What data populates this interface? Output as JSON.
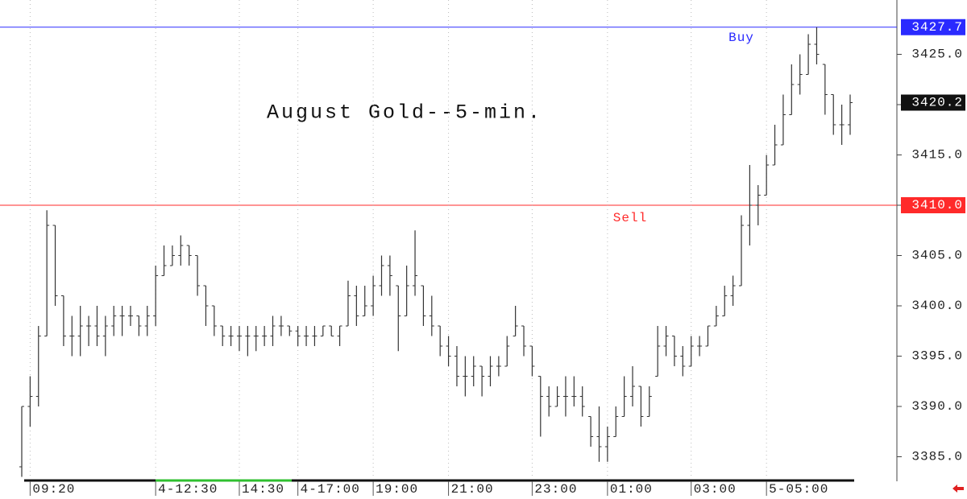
{
  "chart_data": {
    "type": "ohlc",
    "title": "August Gold--5-min.",
    "categories": [
      null,
      "09:20",
      null,
      null,
      null,
      null,
      null,
      null,
      null,
      null,
      null,
      null,
      null,
      null,
      null,
      null,
      "4-12:30",
      null,
      null,
      null,
      null,
      null,
      null,
      null,
      null,
      null,
      "14:30",
      null,
      null,
      null,
      null,
      null,
      null,
      "4-17:00",
      null,
      null,
      null,
      null,
      null,
      null,
      null,
      null,
      "19:00",
      null,
      null,
      null,
      null,
      null,
      null,
      null,
      null,
      "21:00",
      null,
      null,
      null,
      null,
      null,
      null,
      null,
      null,
      null,
      "23:00",
      null,
      null,
      null,
      null,
      null,
      null,
      null,
      null,
      "01:00",
      null,
      null,
      null,
      null,
      null,
      null,
      null,
      null,
      null,
      "03:00",
      null,
      null,
      null,
      null,
      null,
      null,
      null,
      null,
      "5-05:00",
      null,
      null,
      null,
      null,
      null,
      null,
      null,
      null,
      null,
      null
    ],
    "series": [
      {
        "color": "#333333",
        "open": [
          3384,
          3390,
          3391,
          3397,
          3408,
          3401,
          3397,
          3397,
          3398,
          3398,
          3397,
          3398,
          3399,
          3399,
          3399,
          3398,
          3399,
          3403,
          3404,
          3405,
          3406,
          3405,
          3402,
          3400,
          3398,
          3397,
          3397,
          3397,
          3397,
          3397,
          3397,
          3398,
          3398,
          3397.5,
          3397,
          3397,
          3397,
          3398,
          3397,
          3398,
          3401,
          3399,
          3400,
          3402,
          3404,
          3402,
          3399,
          3402,
          3402,
          3399,
          3398,
          3396,
          3395,
          3393,
          3393,
          3394,
          3393,
          3394,
          3394,
          3397,
          3398,
          3396,
          3393,
          3391,
          3390,
          3391,
          3391,
          3391,
          3389,
          3387,
          3386,
          3387,
          3389,
          3391,
          3392,
          3389,
          3393,
          3396,
          3397,
          3395,
          3394,
          3396,
          3396,
          3398,
          3399,
          3401,
          3402,
          3408,
          3410,
          3411,
          3414,
          3416,
          3419,
          3422,
          3423,
          3426,
          3424,
          3421,
          3418,
          3418
        ],
        "high": [
          3390,
          3393,
          3398,
          3409.5,
          3408,
          3401,
          3399,
          3400,
          3399,
          3400,
          3399,
          3400,
          3400,
          3400,
          3399,
          3400,
          3404,
          3406,
          3406,
          3407,
          3406,
          3405,
          3402,
          3400,
          3398,
          3398,
          3398,
          3398,
          3398,
          3398,
          3399,
          3399,
          3398,
          3398,
          3398,
          3398,
          3398,
          3398,
          3398,
          3402.5,
          3402,
          3402,
          3403,
          3405,
          3405,
          3402,
          3404,
          3407.5,
          3402,
          3401,
          3398,
          3397,
          3396,
          3395,
          3395,
          3394,
          3395,
          3395,
          3397,
          3400,
          3398,
          3396,
          3393,
          3392,
          3392,
          3393,
          3393,
          3392,
          3389,
          3390,
          3388,
          3390,
          3393,
          3394,
          3392,
          3392,
          3398,
          3398,
          3397,
          3396,
          3397,
          3397,
          3398,
          3400,
          3402,
          3403,
          3409,
          3414,
          3412,
          3415,
          3418,
          3421,
          3424,
          3425,
          3427,
          3427.7,
          3424,
          3421,
          3420,
          3421
        ],
        "low": [
          3383,
          3388,
          3390,
          3397,
          3400,
          3396,
          3395,
          3395,
          3396,
          3396,
          3395,
          3397,
          3397,
          3398,
          3397,
          3397,
          3398,
          3403,
          3404,
          3404,
          3404,
          3401,
          3398,
          3397,
          3396,
          3396,
          3395.5,
          3395,
          3395.5,
          3396,
          3396,
          3397,
          3397,
          3396,
          3396,
          3396,
          3397,
          3397,
          3396,
          3398,
          3398,
          3399,
          3399,
          3401,
          3401,
          3395.5,
          3399,
          3401,
          3398,
          3397,
          3395,
          3394,
          3392,
          3391,
          3392,
          3391,
          3392,
          3393,
          3394,
          3397,
          3395,
          3393,
          3387,
          3389,
          3390,
          3389,
          3390,
          3389,
          3386,
          3384.5,
          3384.5,
          3387,
          3389,
          3390,
          3388,
          3389,
          3393,
          3395,
          3394,
          3393,
          3394,
          3395,
          3396,
          3398,
          3399,
          3400,
          3402,
          3406,
          3408,
          3411,
          3414,
          3416,
          3419,
          3421,
          3423,
          3424,
          3419,
          3417,
          3416,
          3417
        ],
        "close": [
          3390,
          3391,
          3397,
          3408,
          3401,
          3397,
          3397,
          3398,
          3398,
          3397,
          3398,
          3399,
          3399,
          3399,
          3398,
          3399,
          3403,
          3404,
          3405,
          3406,
          3405,
          3402,
          3400,
          3398,
          3397,
          3397,
          3397,
          3397,
          3397,
          3397,
          3398,
          3398,
          3397.5,
          3397,
          3397,
          3397,
          3398,
          3397,
          3398,
          3401,
          3399,
          3400,
          3402,
          3404,
          3403,
          3399,
          3402,
          3403,
          3399,
          3398,
          3396,
          3395,
          3393,
          3393,
          3394,
          3393,
          3394,
          3394,
          3396,
          3398,
          3396,
          3394,
          3391,
          3390,
          3391,
          3391,
          3391,
          3390,
          3387,
          3386,
          3387,
          3389,
          3391,
          3392,
          3389,
          3391,
          3396,
          3397,
          3395,
          3394,
          3396,
          3396,
          3398,
          3399,
          3401,
          3402,
          3408,
          3410,
          3411,
          3414,
          3416,
          3419,
          3422,
          3423,
          3426,
          3425,
          3421,
          3418,
          3418,
          3420.2
        ]
      }
    ],
    "ylim": [
      3382.8,
      3430.4
    ],
    "yticks": [
      {
        "value": 3385,
        "label": "3385.0"
      },
      {
        "value": 3390,
        "label": "3390.0"
      },
      {
        "value": 3395,
        "label": "3395.0"
      },
      {
        "value": 3400,
        "label": "3400.0"
      },
      {
        "value": 3405,
        "label": "3405.0"
      },
      {
        "value": 3410,
        "label": "3410.0"
      },
      {
        "value": 3415,
        "label": "3415.0"
      },
      {
        "value": 3420,
        "label": "3420.0"
      },
      {
        "value": 3425,
        "label": "3425.0"
      }
    ],
    "horizontal_lines": [
      {
        "value": 3427.7,
        "label": "3427.7",
        "color": "#2a2aff"
      },
      {
        "value": 3410,
        "label": "3410.0",
        "color": "#ff2a2a"
      }
    ],
    "last_price": 3420.2,
    "annotations": [
      {
        "text": "Buy",
        "color": "#2a2aff"
      },
      {
        "text": "Sell",
        "color": "#ff2a2a"
      }
    ]
  }
}
